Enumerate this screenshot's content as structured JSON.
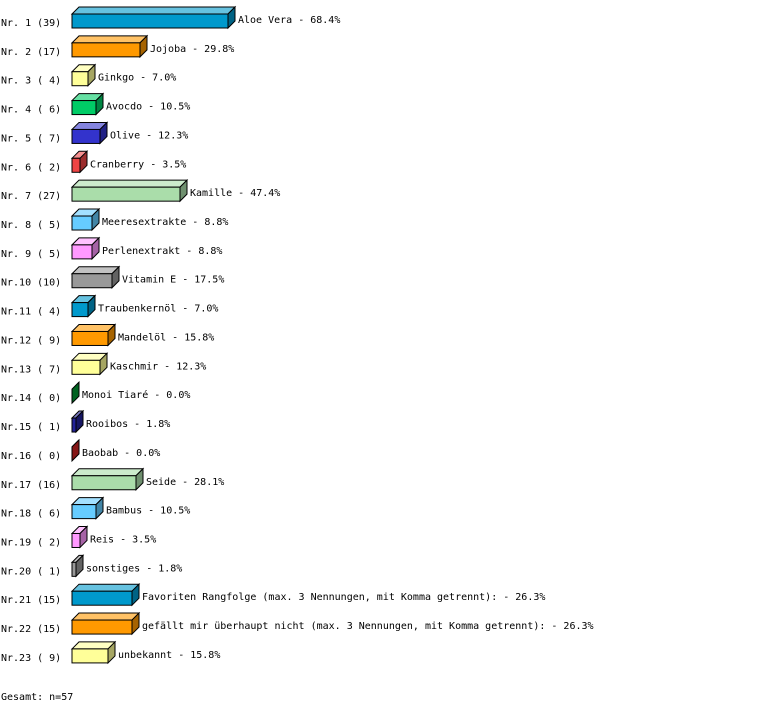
{
  "chart_data": {
    "type": "bar",
    "orientation": "horizontal",
    "style": "3d",
    "grid": false,
    "rows": [
      {
        "rank": "Nr. 1",
        "count": 39,
        "label": "Aloe Vera",
        "percent": "68.4%",
        "color": "#0099cc"
      },
      {
        "rank": "Nr. 2",
        "count": 17,
        "label": "Jojoba",
        "percent": "29.8%",
        "color": "#ff9900"
      },
      {
        "rank": "Nr. 3",
        "count": 4,
        "label": "Ginkgo",
        "percent": "7.0%",
        "color": "#ffff99"
      },
      {
        "rank": "Nr. 4",
        "count": 6,
        "label": "Avocdo",
        "percent": "10.5%",
        "color": "#00cc66"
      },
      {
        "rank": "Nr. 5",
        "count": 7,
        "label": "Olive",
        "percent": "12.3%",
        "color": "#3333cc"
      },
      {
        "rank": "Nr. 6",
        "count": 2,
        "label": "Cranberry",
        "percent": "3.5%",
        "color": "#ee4444"
      },
      {
        "rank": "Nr. 7",
        "count": 27,
        "label": "Kamille",
        "percent": "47.4%",
        "color": "#aaddaa"
      },
      {
        "rank": "Nr. 8",
        "count": 5,
        "label": "Meeresextrakte",
        "percent": "8.8%",
        "color": "#66ccff"
      },
      {
        "rank": "Nr. 9",
        "count": 5,
        "label": "Perlenextrakt",
        "percent": "8.8%",
        "color": "#ff99ff"
      },
      {
        "rank": "Nr.10",
        "count": 10,
        "label": "Vitamin E",
        "percent": "17.5%",
        "color": "#999999"
      },
      {
        "rank": "Nr.11",
        "count": 4,
        "label": "Traubenkernöl",
        "percent": "7.0%",
        "color": "#0099cc"
      },
      {
        "rank": "Nr.12",
        "count": 9,
        "label": "Mandelöl",
        "percent": "15.8%",
        "color": "#ff9900"
      },
      {
        "rank": "Nr.13",
        "count": 7,
        "label": "Kaschmir",
        "percent": "12.3%",
        "color": "#ffff99"
      },
      {
        "rank": "Nr.14",
        "count": 0,
        "label": "Monoi Tiaré",
        "percent": "0.0%",
        "color": "#009933"
      },
      {
        "rank": "Nr.15",
        "count": 1,
        "label": "Rooibos",
        "percent": "1.8%",
        "color": "#222299"
      },
      {
        "rank": "Nr.16",
        "count": 0,
        "label": "Baobab",
        "percent": "0.0%",
        "color": "#cc2222"
      },
      {
        "rank": "Nr.17",
        "count": 16,
        "label": "Seide",
        "percent": "28.1%",
        "color": "#aaddaa"
      },
      {
        "rank": "Nr.18",
        "count": 6,
        "label": "Bambus",
        "percent": "10.5%",
        "color": "#66ccff"
      },
      {
        "rank": "Nr.19",
        "count": 2,
        "label": "Reis",
        "percent": "3.5%",
        "color": "#ff99ff"
      },
      {
        "rank": "Nr.20",
        "count": 1,
        "label": "sonstiges",
        "percent": "1.8%",
        "color": "#999999"
      },
      {
        "rank": "Nr.21",
        "count": 15,
        "label": "Favoriten Rangfolge (max. 3 Nennungen, mit Komma getrennt):",
        "percent": "26.3%",
        "color": "#0099cc"
      },
      {
        "rank": "Nr.22",
        "count": 15,
        "label": "gefällt mir überhaupt nicht (max. 3 Nennungen, mit Komma getrennt):",
        "percent": "26.3%",
        "color": "#ff9900"
      },
      {
        "rank": "Nr.23",
        "count": 9,
        "label": "unbekannt",
        "percent": "15.8%",
        "color": "#ffff99"
      }
    ],
    "footer": "Gesamt: n=57"
  }
}
